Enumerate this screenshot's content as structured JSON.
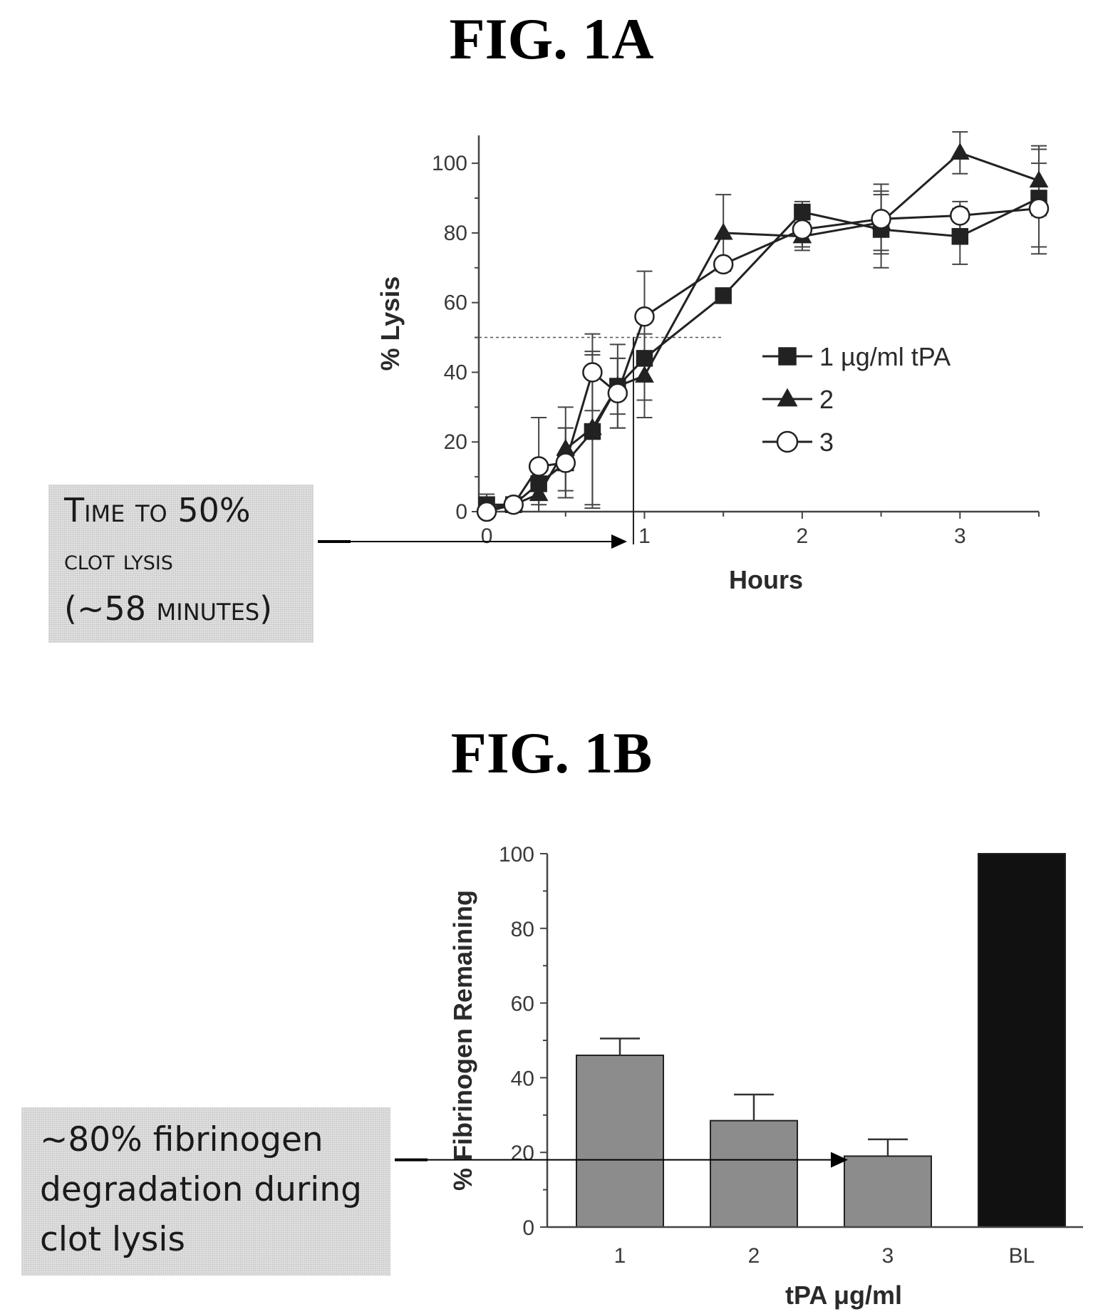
{
  "figure_a": {
    "title": "FIG. 1A",
    "annotation_lines": [
      "Time to 50%",
      "clot lysis",
      "(~58 minutes)"
    ]
  },
  "figure_b": {
    "title": "FIG. 1B",
    "annotation_lines": [
      "~80% fibrinogen",
      "degradation during",
      "clot lysis"
    ]
  },
  "colors": {
    "bar_gray": "#8c8c8c",
    "bar_black": "#111111",
    "axis": "#444444",
    "annotation_bg": "#e6e6e6"
  },
  "chart_data": [
    {
      "type": "line",
      "xlabel": "Hours",
      "ylabel": "% Lysis",
      "xlim": [
        -0.05,
        3.5
      ],
      "ylim": [
        0,
        108
      ],
      "x_ticks": [
        "0",
        "1",
        "2",
        "3"
      ],
      "y_ticks": [
        "0",
        "20",
        "40",
        "60",
        "80",
        "100"
      ],
      "reference_line": {
        "y": 50,
        "x": 0.93
      },
      "legend_position": "right",
      "series": [
        {
          "name": "1 µg/ml tPA",
          "marker": "square",
          "x": [
            0.0,
            0.17,
            0.33,
            0.5,
            0.67,
            0.83,
            1.0,
            1.5,
            2.0,
            2.5,
            3.0,
            3.5
          ],
          "y": [
            2,
            2,
            8,
            14,
            23,
            36,
            44,
            62,
            86,
            81,
            79,
            90
          ],
          "err": [
            3,
            2,
            6,
            10,
            22,
            12,
            12,
            0,
            3,
            11,
            8,
            14
          ]
        },
        {
          "name": "2",
          "marker": "triangle",
          "x": [
            0.0,
            0.17,
            0.33,
            0.5,
            0.67,
            0.83,
            1.0,
            1.5,
            2.0,
            2.5,
            3.0,
            3.5
          ],
          "y": [
            1,
            2,
            5,
            18,
            24,
            36,
            39,
            80,
            79,
            83,
            103,
            95
          ],
          "err": [
            3,
            2,
            5,
            12,
            22,
            8,
            12,
            11,
            4,
            8,
            6,
            10
          ]
        },
        {
          "name": "3",
          "marker": "circle",
          "x": [
            0.0,
            0.17,
            0.33,
            0.5,
            0.67,
            0.83,
            1.0,
            1.5,
            2.0,
            2.5,
            3.0,
            3.5
          ],
          "y": [
            0,
            2,
            13,
            14,
            40,
            34,
            56,
            71,
            81,
            84,
            85,
            87
          ],
          "err": [
            0,
            2,
            14,
            10,
            11,
            10,
            13,
            0,
            5,
            10,
            4,
            13
          ]
        }
      ]
    },
    {
      "type": "bar",
      "xlabel": "tPA μg/ml",
      "ylabel": "% Fibrinogen Remaining",
      "categories": [
        "1",
        "2",
        "3",
        "BL"
      ],
      "values": [
        46,
        28.5,
        19,
        100
      ],
      "err": [
        4.5,
        7,
        4.5,
        0
      ],
      "colors": [
        "#8c8c8c",
        "#8c8c8c",
        "#8c8c8c",
        "#111111"
      ],
      "ylim": [
        0,
        100
      ],
      "y_ticks": [
        "0",
        "20",
        "40",
        "60",
        "80",
        "100"
      ],
      "reference_line": {
        "y": 18
      }
    }
  ]
}
